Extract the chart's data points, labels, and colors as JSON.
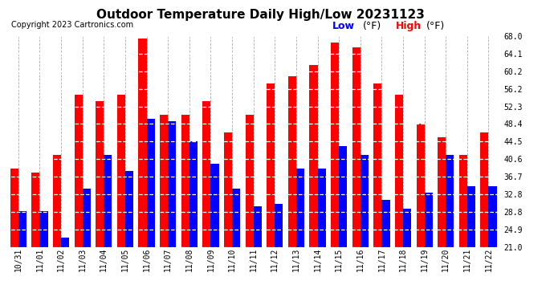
{
  "title": "Outdoor Temperature Daily High/Low 20231123",
  "copyright": "Copyright 2023 Cartronics.com",
  "legend_low_label": "Low",
  "legend_high_label": "High",
  "legend_unit": "(°F)",
  "ylabel_right_ticks": [
    21.0,
    24.9,
    28.8,
    32.8,
    36.7,
    40.6,
    44.5,
    48.4,
    52.3,
    56.2,
    60.2,
    64.1,
    68.0
  ],
  "ylim": [
    21.0,
    68.0
  ],
  "categories": [
    "10/31",
    "11/01",
    "11/02",
    "11/03",
    "11/04",
    "11/05",
    "11/06",
    "11/07",
    "11/08",
    "11/09",
    "11/10",
    "11/11",
    "11/12",
    "11/13",
    "11/14",
    "11/15",
    "11/16",
    "11/17",
    "11/18",
    "11/19",
    "11/20",
    "11/21",
    "11/22"
  ],
  "high_values": [
    38.5,
    37.5,
    41.5,
    55.0,
    53.5,
    55.0,
    67.5,
    50.5,
    50.5,
    53.5,
    46.5,
    50.5,
    57.5,
    59.0,
    61.5,
    66.5,
    65.5,
    57.5,
    55.0,
    48.5,
    45.5,
    41.5,
    46.5
  ],
  "low_values": [
    29.0,
    29.0,
    23.0,
    34.0,
    41.5,
    38.0,
    49.5,
    49.0,
    44.5,
    39.5,
    34.0,
    30.0,
    30.5,
    38.5,
    38.5,
    43.5,
    41.5,
    31.5,
    29.5,
    33.0,
    41.5,
    34.5,
    34.5
  ],
  "bar_color_high": "#ff0000",
  "bar_color_low": "#0000ff",
  "background_color": "#ffffff",
  "title_fontsize": 11,
  "copyright_fontsize": 7,
  "tick_fontsize": 7,
  "legend_fontsize": 9,
  "grid_color": "#aaaaaa",
  "bar_width": 0.38
}
